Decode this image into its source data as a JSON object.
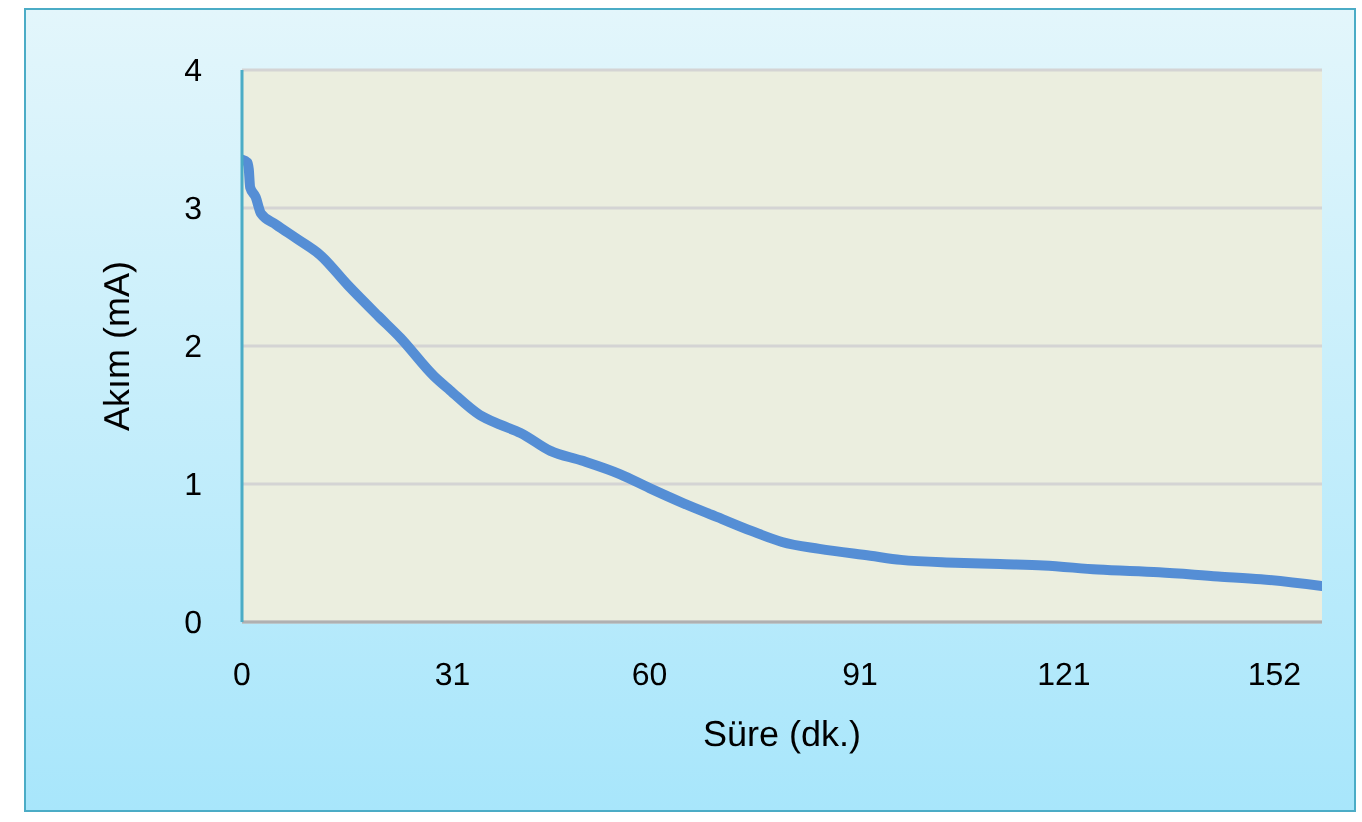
{
  "chart_data": {
    "type": "line",
    "xlabel": "Süre (dk.)",
    "ylabel": "Akım (mA)",
    "x": [
      0,
      0.8,
      1,
      1.2,
      2,
      2.8,
      5,
      8,
      11.5,
      15.6,
      20,
      23.3,
      28.3,
      30.6,
      35,
      38,
      41,
      45.4,
      50,
      55.7,
      60,
      65,
      70,
      75,
      79.5,
      85,
      92.5,
      97,
      105,
      111.6,
      118,
      126,
      135,
      143.7,
      150,
      159
    ],
    "series": [
      {
        "color": "#558ed5",
        "values": [
          3.35,
          3.33,
          3.28,
          3.15,
          3.08,
          2.96,
          2.88,
          2.78,
          2.66,
          2.44,
          2.22,
          2.06,
          1.78,
          1.68,
          1.5,
          1.43,
          1.37,
          1.24,
          1.17,
          1.07,
          0.97,
          0.86,
          0.76,
          0.66,
          0.58,
          0.53,
          0.48,
          0.45,
          0.43,
          0.42,
          0.41,
          0.38,
          0.36,
          0.33,
          0.31,
          0.26
        ]
      }
    ],
    "xlim": [
      0,
      159
    ],
    "xticks": [
      0,
      31,
      60,
      91,
      121,
      152
    ],
    "ylim": [
      0,
      4
    ],
    "yticks": [
      0,
      1,
      2,
      3,
      4
    ],
    "grid": "y",
    "marker": "none",
    "line_style": "solid"
  }
}
